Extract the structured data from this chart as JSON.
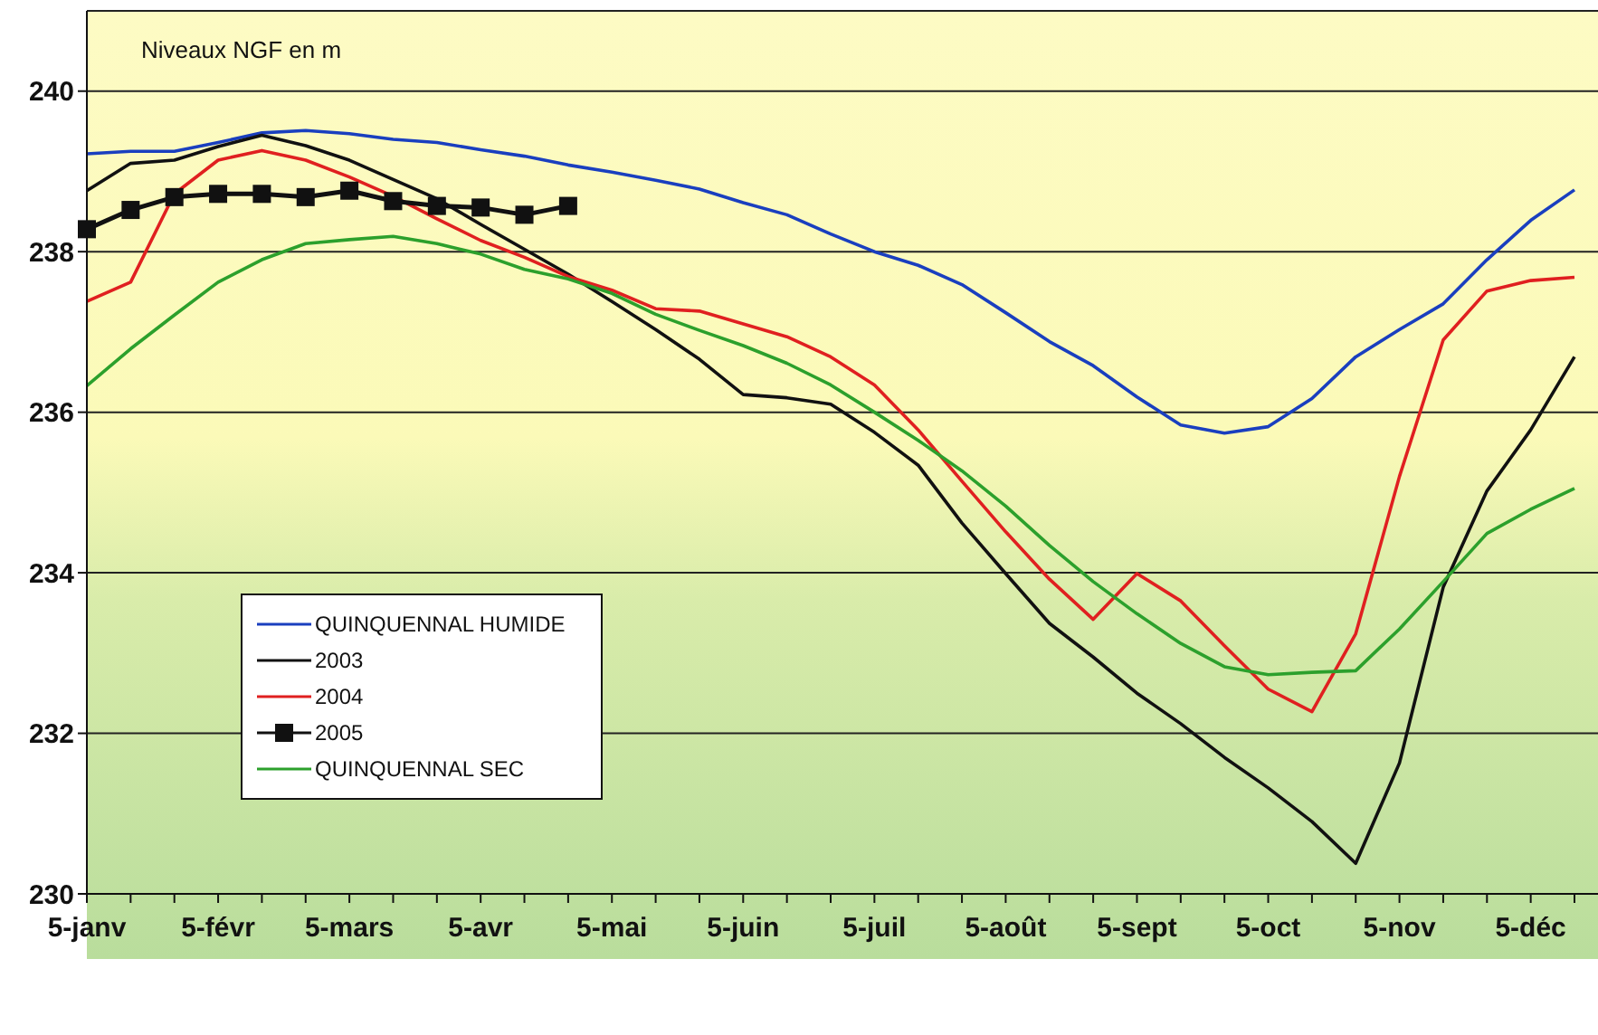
{
  "chart_data": {
    "type": "line",
    "ylabel": "Niveaux NGF en m",
    "categories": [
      "5-janv",
      null,
      null,
      "5-févr",
      null,
      null,
      "5-mars",
      null,
      null,
      "5-avr",
      null,
      null,
      "5-mai",
      null,
      null,
      "5-juin",
      null,
      null,
      "5-juil",
      null,
      null,
      "5-août",
      null,
      null,
      "5-sept",
      null,
      null,
      "5-oct",
      null,
      null,
      "5-nov",
      null,
      null,
      "5-déc",
      null
    ],
    "series": [
      {
        "name": "QUINQUENNAL HUMIDE",
        "color": "#1a3fbf",
        "marker": "none",
        "values": [
          239.22,
          239.25,
          239.25,
          239.36,
          239.48,
          239.51,
          239.47,
          239.4,
          239.36,
          239.27,
          239.19,
          239.08,
          238.99,
          238.89,
          238.78,
          238.61,
          238.46,
          238.22,
          238.0,
          237.83,
          237.59,
          237.24,
          236.88,
          236.58,
          236.19,
          235.84,
          235.74,
          235.82,
          236.17,
          236.69,
          237.03,
          237.35,
          237.9,
          238.39,
          238.77
        ]
      },
      {
        "name": "2003",
        "color": "#111111",
        "marker": "none",
        "values": [
          238.76,
          239.1,
          239.14,
          239.31,
          239.45,
          239.32,
          239.14,
          238.9,
          238.66,
          238.34,
          238.03,
          237.72,
          237.38,
          237.03,
          236.66,
          236.22,
          236.18,
          236.1,
          235.75,
          235.34,
          234.62,
          233.99,
          233.37,
          232.95,
          232.5,
          232.12,
          231.7,
          231.32,
          230.9,
          230.38,
          231.63,
          233.82,
          235.02,
          235.78,
          236.69
        ]
      },
      {
        "name": "2004",
        "color": "#e02020",
        "marker": "none",
        "values": [
          237.38,
          237.62,
          238.72,
          239.14,
          239.26,
          239.14,
          238.93,
          238.69,
          238.41,
          238.14,
          237.93,
          237.69,
          237.52,
          237.29,
          237.26,
          237.1,
          236.94,
          236.69,
          236.34,
          235.78,
          235.14,
          234.51,
          233.92,
          233.42,
          233.99,
          233.65,
          233.09,
          232.55,
          232.27,
          233.24,
          235.2,
          236.9,
          237.51,
          237.64,
          237.68
        ]
      },
      {
        "name": "2005",
        "color": "#111111",
        "marker": "square",
        "values": [
          238.28,
          238.52,
          238.68,
          238.72,
          238.72,
          238.68,
          238.76,
          238.63,
          238.57,
          238.55,
          238.46,
          238.57,
          null,
          null,
          null,
          null,
          null,
          null,
          null,
          null,
          null,
          null,
          null,
          null,
          null,
          null,
          null,
          null,
          null,
          null,
          null,
          null,
          null,
          null,
          null
        ]
      },
      {
        "name": "QUINQUENNAL SEC",
        "color": "#2ca02c",
        "marker": "none",
        "values": [
          236.33,
          236.79,
          237.21,
          237.62,
          237.9,
          238.1,
          238.15,
          238.19,
          238.1,
          237.97,
          237.78,
          237.66,
          237.48,
          237.22,
          237.02,
          236.83,
          236.61,
          236.34,
          236.0,
          235.65,
          235.27,
          234.83,
          234.34,
          233.89,
          233.49,
          233.12,
          232.83,
          232.73,
          232.76,
          232.78,
          233.3,
          233.89,
          234.49,
          234.79,
          235.05
        ]
      }
    ],
    "ylim": [
      230,
      241
    ],
    "yticks": [
      230,
      232,
      234,
      236,
      238,
      240
    ],
    "grid": "y",
    "legend": "bottom left",
    "line_style": "solid"
  }
}
